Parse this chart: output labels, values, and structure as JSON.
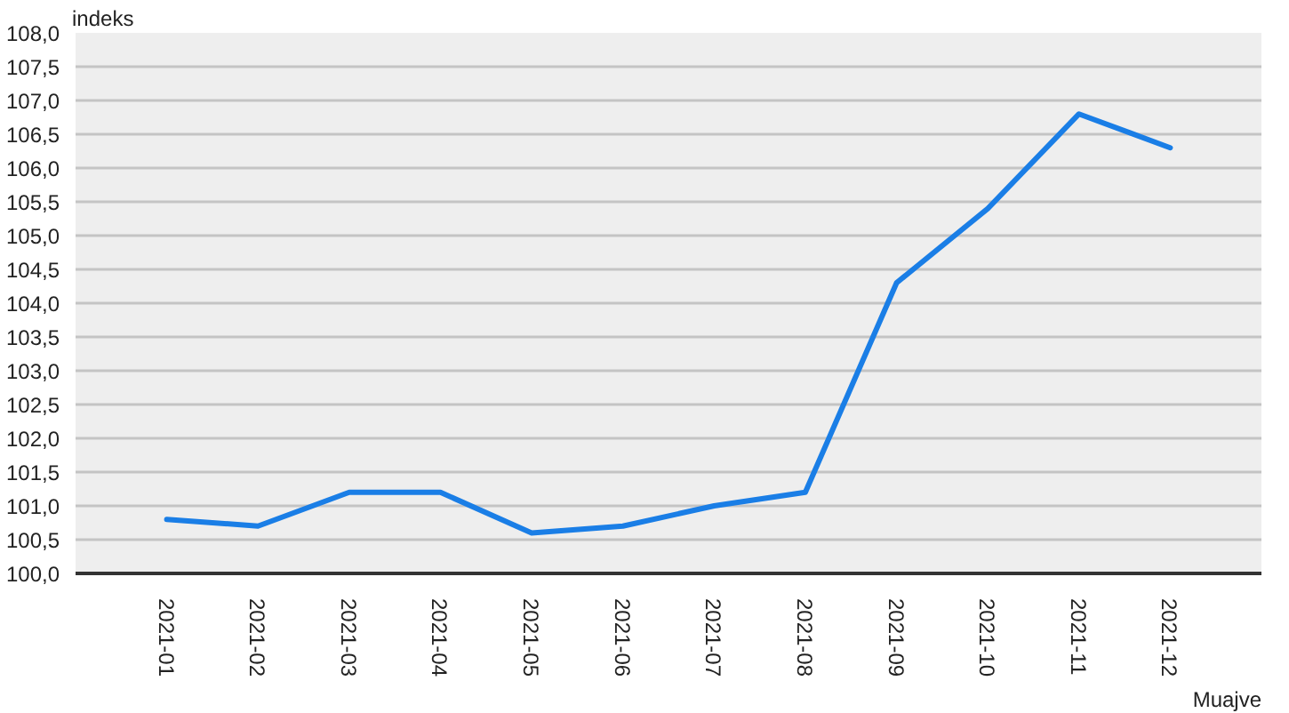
{
  "chart_data": {
    "type": "line",
    "xlabel": "Muajve",
    "ylabel": "indeks",
    "categories": [
      "2021-01",
      "2021-02",
      "2021-03",
      "2021-04",
      "2021-05",
      "2021-06",
      "2021-07",
      "2021-08",
      "2021-09",
      "2021-10",
      "2021-11",
      "2021-12"
    ],
    "series": [
      {
        "color": "#1a7ee6",
        "values": [
          100.8,
          100.7,
          101.2,
          101.2,
          100.6,
          100.7,
          101.0,
          101.2,
          104.3,
          105.4,
          106.8,
          106.3
        ]
      }
    ],
    "ylim": [
      100,
      108
    ],
    "yticks": [
      {
        "value": 100,
        "label": "100,0"
      },
      {
        "value": 100.5,
        "label": "100,5"
      },
      {
        "value": 101,
        "label": "101,0"
      },
      {
        "value": 101.5,
        "label": "101,5"
      },
      {
        "value": 102,
        "label": "102,0"
      },
      {
        "value": 102.5,
        "label": "102,5"
      },
      {
        "value": 103,
        "label": "103,0"
      },
      {
        "value": 103.5,
        "label": "103,5"
      },
      {
        "value": 104,
        "label": "104,0"
      },
      {
        "value": 104.5,
        "label": "104,5"
      },
      {
        "value": 105,
        "label": "105,0"
      },
      {
        "value": 105.5,
        "label": "105,5"
      },
      {
        "value": 106,
        "label": "106,0"
      },
      {
        "value": 106.5,
        "label": "106,5"
      },
      {
        "value": 107,
        "label": "107,0"
      },
      {
        "value": 107.5,
        "label": "107,5"
      },
      {
        "value": 108,
        "label": "108,0"
      }
    ],
    "grid": "y",
    "marker": "none",
    "line_style": "solid"
  }
}
